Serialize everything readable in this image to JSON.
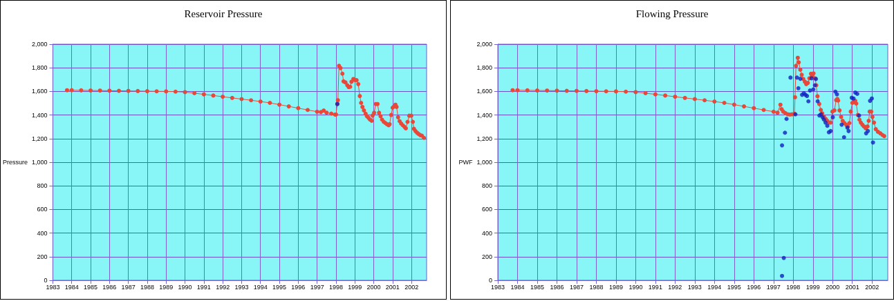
{
  "chart_data": [
    {
      "type": "line",
      "title": "Reservoir Pressure",
      "ylabel": "Pressure",
      "marker": "circle",
      "grid": true,
      "xlim": [
        1983,
        2002.8
      ],
      "ylim": [
        0,
        2000
      ],
      "xticks": [
        1983,
        1984,
        1985,
        1986,
        1987,
        1988,
        1989,
        1990,
        1991,
        1992,
        1993,
        1994,
        1995,
        1996,
        1997,
        1998,
        1999,
        2000,
        2001,
        2002
      ],
      "yticks": [
        0,
        200,
        400,
        600,
        800,
        {
          "value": 1000,
          "label": "1,000"
        },
        {
          "value": 1200,
          "label": "1,200"
        },
        {
          "value": 1400,
          "label": "1,400"
        },
        {
          "value": 1600,
          "label": "1,600"
        },
        {
          "value": 1800,
          "label": "1,800"
        },
        {
          "value": 2000,
          "label": "2,000"
        }
      ],
      "series": [
        {
          "type": "line",
          "color": "#e8483a",
          "x": [
            1983.75,
            1984,
            1984.5,
            1985,
            1985.5,
            1986,
            1986.5,
            1987,
            1987.5,
            1988,
            1988.5,
            1989,
            1989.5,
            1990,
            1990.5,
            1991,
            1991.5,
            1992,
            1992.5,
            1993,
            1993.5,
            1994,
            1994.5,
            1995,
            1995.5,
            1996,
            1996.5,
            1997,
            1997.2,
            1997.35,
            1997.5,
            1997.75,
            1997.95,
            1998.0,
            1998.07,
            1998.1,
            1998.16,
            1998.24,
            1998.34,
            1998.4,
            1998.5,
            1998.6,
            1998.67,
            1998.75,
            1998.82,
            1998.92,
            1999.0,
            1999.09,
            1999.18,
            1999.26,
            1999.33,
            1999.4,
            1999.48,
            1999.57,
            1999.64,
            1999.72,
            1999.8,
            1999.89,
            1999.94,
            2000.02,
            2000.11,
            2000.2,
            2000.28,
            2000.36,
            2000.44,
            2000.53,
            2000.62,
            2000.7,
            2000.79,
            2000.84,
            2000.92,
            2001.0,
            2001.08,
            2001.15,
            2001.21,
            2001.29,
            2001.37,
            2001.45,
            2001.54,
            2001.63,
            2001.7,
            2001.79,
            2001.88,
            2001.99,
            2002.07,
            2002.13,
            2002.21,
            2002.3,
            2002.38,
            2002.47,
            2002.55,
            2002.66
          ],
          "values": [
            1610,
            1610,
            1609,
            1608,
            1607,
            1606,
            1605,
            1604,
            1603,
            1602,
            1601,
            1600,
            1598,
            1594,
            1585,
            1575,
            1565,
            1555,
            1545,
            1535,
            1525,
            1514,
            1503,
            1488,
            1473,
            1458,
            1443,
            1428,
            1425,
            1438,
            1420,
            1412,
            1404,
            1404,
            1493,
            1526,
            1817,
            1798,
            1750,
            1685,
            1676,
            1652,
            1637,
            1639,
            1682,
            1705,
            1697,
            1695,
            1662,
            1561,
            1503,
            1468,
            1439,
            1410,
            1390,
            1377,
            1361,
            1351,
            1396,
            1419,
            1493,
            1493,
            1419,
            1390,
            1361,
            1342,
            1332,
            1322,
            1313,
            1322,
            1400,
            1462,
            1474,
            1487,
            1468,
            1381,
            1348,
            1328,
            1313,
            1299,
            1287,
            1342,
            1394,
            1394,
            1342,
            1283,
            1264,
            1249,
            1239,
            1229,
            1225,
            1206
          ]
        },
        {
          "type": "scatter",
          "color": "#1020c0",
          "x": [
            1998.07
          ],
          "values": [
            1493
          ]
        }
      ]
    },
    {
      "type": "line",
      "title": "Flowing Pressure",
      "ylabel": "PWF",
      "marker": "circle",
      "grid": true,
      "xlim": [
        1983,
        2002.8
      ],
      "ylim": [
        0,
        2000
      ],
      "xticks": [
        1983,
        1984,
        1985,
        1986,
        1987,
        1988,
        1989,
        1990,
        1991,
        1992,
        1993,
        1994,
        1995,
        1996,
        1997,
        1998,
        1999,
        2000,
        2001,
        2002
      ],
      "yticks": [
        0,
        200,
        400,
        600,
        800,
        {
          "value": 1000,
          "label": "1,000"
        },
        {
          "value": 1200,
          "label": "1,200"
        },
        {
          "value": 1400,
          "label": "1,400"
        },
        {
          "value": 1600,
          "label": "1,600"
        },
        {
          "value": 1800,
          "label": "1,800"
        },
        {
          "value": 2000,
          "label": "2,000"
        }
      ],
      "series": [
        {
          "type": "line",
          "color": "#e8483a",
          "x": [
            1983.75,
            1984,
            1984.5,
            1985,
            1985.5,
            1986,
            1986.5,
            1987,
            1987.5,
            1988,
            1988.5,
            1989,
            1989.5,
            1990,
            1990.5,
            1991,
            1991.5,
            1992,
            1992.5,
            1993,
            1993.5,
            1994,
            1994.5,
            1995,
            1995.5,
            1996,
            1996.5,
            1997,
            1997.2,
            1997.35,
            1997.41,
            1997.49,
            1997.6,
            1997.72,
            1997.83,
            1997.94,
            1998.06,
            1998.09,
            1998.14,
            1998.23,
            1998.28,
            1998.36,
            1998.43,
            1998.51,
            1998.59,
            1998.66,
            1998.74,
            1998.82,
            1998.9,
            1998.96,
            1999.03,
            1999.11,
            1999.17,
            1999.23,
            1999.32,
            1999.4,
            1999.47,
            1999.56,
            1999.65,
            1999.73,
            1999.81,
            1999.9,
            1999.99,
            2000.09,
            2000.18,
            2000.24,
            2000.28,
            2000.35,
            2000.43,
            2000.51,
            2000.6,
            2000.69,
            2000.77,
            2000.85,
            2000.92,
            2001.0,
            2001.08,
            2001.15,
            2001.2,
            2001.28,
            2001.36,
            2001.43,
            2001.51,
            2001.59,
            2001.68,
            2001.77,
            2001.83,
            2001.88,
            2001.96,
            2002.02,
            2002.1,
            2002.19,
            2002.3,
            2002.42,
            2002.53,
            2002.62
          ],
          "values": [
            1610,
            1610,
            1609,
            1608,
            1607,
            1606,
            1605,
            1604,
            1603,
            1602,
            1601,
            1600,
            1598,
            1594,
            1585,
            1575,
            1565,
            1555,
            1545,
            1535,
            1525,
            1514,
            1503,
            1488,
            1473,
            1458,
            1443,
            1428,
            1420,
            1487,
            1449,
            1429,
            1416,
            1406,
            1404,
            1406,
            1410,
            1550,
            1817,
            1885,
            1846,
            1784,
            1740,
            1705,
            1682,
            1662,
            1672,
            1711,
            1750,
            1730,
            1753,
            1711,
            1652,
            1559,
            1493,
            1443,
            1414,
            1386,
            1367,
            1351,
            1336,
            1336,
            1429,
            1439,
            1526,
            1536,
            1522,
            1439,
            1384,
            1351,
            1332,
            1317,
            1303,
            1332,
            1429,
            1503,
            1511,
            1520,
            1497,
            1400,
            1361,
            1336,
            1318,
            1303,
            1287,
            1303,
            1351,
            1429,
            1429,
            1384,
            1336,
            1280,
            1258,
            1245,
            1231,
            1221
          ]
        },
        {
          "type": "scatter",
          "color": "#1020c0",
          "x": [
            1997.43,
            1997.43,
            1997.52,
            1997.58,
            1997.66,
            1997.86,
            1998.11,
            1998.19,
            1998.26,
            1998.36,
            1998.45,
            1998.54,
            1998.62,
            1998.7,
            1998.77,
            1998.85,
            1998.93,
            1999.02,
            1999.1,
            1999.15,
            1999.24,
            1999.33,
            1999.41,
            1999.49,
            1999.56,
            1999.64,
            1999.73,
            1999.81,
            1999.9,
            2000.01,
            2000.14,
            2000.22,
            2000.46,
            2000.58,
            2000.75,
            2000.81,
            2000.97,
            2001.06,
            2001.15,
            2001.25,
            2001.34,
            2001.7,
            2001.79,
            2001.9,
            2001.99,
            2002.05
          ],
          "values": [
            37,
            1143,
            189,
            1250,
            1367,
            1717,
            1406,
            1717,
            1627,
            1707,
            1571,
            1584,
            1571,
            1561,
            1516,
            1608,
            1711,
            1617,
            1652,
            1705,
            1516,
            1396,
            1406,
            1381,
            1361,
            1336,
            1309,
            1254,
            1264,
            1381,
            1598,
            1575,
            1318,
            1212,
            1293,
            1264,
            1546,
            1540,
            1590,
            1579,
            1396,
            1245,
            1264,
            1520,
            1540,
            1167
          ]
        }
      ]
    }
  ]
}
